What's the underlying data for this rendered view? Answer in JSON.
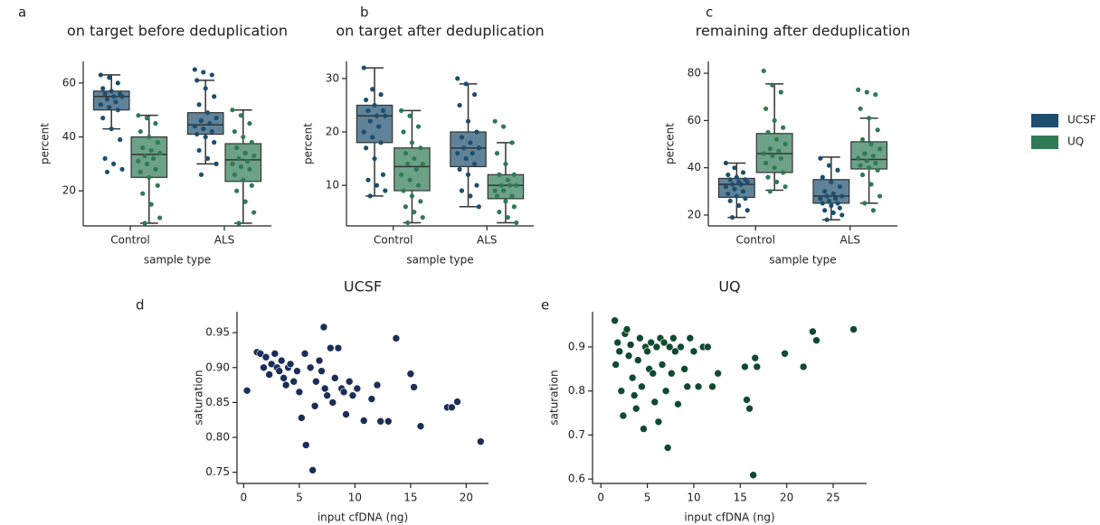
{
  "chart_data": [
    {
      "type": "box",
      "panel_label": "a",
      "title": "on target before deduplication",
      "ylabel": "percent",
      "xlabel": "sample type",
      "categories": [
        "Control",
        "ALS"
      ],
      "ylim": [
        7,
        68
      ],
      "yticks": [
        20,
        40,
        60
      ],
      "series": [
        {
          "name": "UCSF",
          "color": "#1d4e6e",
          "boxes": [
            {
              "whislo": 43,
              "q1": 50,
              "med": 55,
              "q3": 57,
              "whishi": 63
            },
            {
              "whislo": 30,
              "q1": 41,
              "med": 44.5,
              "q3": 49,
              "whishi": 61
            }
          ],
          "points": [
            [
              63,
              62,
              60,
              58,
              57,
              56,
              56,
              55,
              55,
              54,
              53,
              52,
              51,
              50,
              47,
              43,
              39,
              32,
              30,
              28,
              27
            ],
            [
              65,
              64,
              63,
              61,
              58,
              55,
              52,
              49,
              47,
              46,
              45,
              44,
              43,
              42,
              41,
              40,
              38,
              35,
              32,
              30,
              26
            ]
          ]
        },
        {
          "name": "UQ",
          "color": "#2f7a55",
          "boxes": [
            {
              "whislo": 8,
              "q1": 25,
              "med": 33.5,
              "q3": 40,
              "whishi": 48
            },
            {
              "whislo": 8,
              "q1": 23.5,
              "med": 31.5,
              "q3": 37.5,
              "whishi": 50
            }
          ],
          "points": [
            [
              48,
              47,
              45,
              42,
              40,
              38,
              36,
              35,
              34,
              33,
              32,
              31,
              30,
              28,
              27,
              25,
              22,
              19,
              15,
              10,
              8
            ],
            [
              50,
              48,
              45,
              42,
              40,
              38,
              36,
              34,
              33,
              32,
              31,
              30,
              29,
              28,
              26,
              24,
              22,
              20,
              16,
              12,
              8
            ]
          ]
        }
      ]
    },
    {
      "type": "box",
      "panel_label": "b",
      "title": "on target after deduplication",
      "ylabel": "percent",
      "xlabel": "sample type",
      "categories": [
        "Control",
        "ALS"
      ],
      "ylim": [
        2.4,
        33.2
      ],
      "yticks": [
        10,
        20,
        30
      ],
      "series": [
        {
          "name": "UCSF",
          "color": "#1d4e6e",
          "boxes": [
            {
              "whislo": 8,
              "q1": 18,
              "med": 23,
              "q3": 25,
              "whishi": 32
            },
            {
              "whislo": 6,
              "q1": 13.5,
              "med": 17,
              "q3": 20,
              "whishi": 29
            }
          ],
          "points": [
            [
              32,
              28,
              27,
              26,
              25,
              24,
              24,
              23,
              23,
              22,
              21,
              20,
              19,
              18,
              17,
              15,
              12,
              11,
              10,
              9,
              8
            ],
            [
              30,
              29,
              27,
              25,
              22,
              20,
              19,
              18,
              17,
              17,
              16,
              16,
              15,
              14,
              13,
              12,
              10,
              9,
              8,
              6
            ]
          ]
        },
        {
          "name": "UQ",
          "color": "#2f7a55",
          "boxes": [
            {
              "whislo": 3,
              "q1": 9,
              "med": 13.5,
              "q3": 17,
              "whishi": 24
            },
            {
              "whislo": 3,
              "q1": 7.5,
              "med": 10,
              "q3": 12,
              "whishi": 18
            }
          ],
          "points": [
            [
              24,
              23,
              21,
              20,
              18,
              17,
              16,
              15,
              14,
              14,
              13,
              12,
              11,
              10,
              9,
              8,
              7,
              6,
              5,
              4,
              3
            ],
            [
              22,
              21,
              18,
              16,
              14,
              12,
              12,
              11,
              10,
              10,
              10,
              9,
              9,
              8,
              8,
              7,
              6,
              5,
              4,
              3
            ]
          ]
        }
      ]
    },
    {
      "type": "box",
      "panel_label": "c",
      "title": "remaining after deduplication",
      "ylabel": "percent",
      "xlabel": "sample type",
      "categories": [
        "Control",
        "ALS"
      ],
      "ylim": [
        15.4,
        85
      ],
      "yticks": [
        20,
        40,
        60,
        80
      ],
      "legend": "right-outside",
      "series": [
        {
          "name": "UCSF",
          "color": "#1d4e6e",
          "boxes": [
            {
              "whislo": 19,
              "q1": 27.5,
              "med": 33,
              "q3": 35.5,
              "whishi": 42
            },
            {
              "whislo": 18,
              "q1": 25,
              "med": 28,
              "q3": 35,
              "whishi": 44.5
            }
          ],
          "points": [
            [
              42,
              40,
              38,
              37,
              36,
              35,
              35,
              34,
              34,
              33,
              33,
              32,
              31,
              30,
              29,
              28,
              27,
              26,
              24,
              22,
              19
            ],
            [
              44,
              41,
              39,
              36,
              34,
              32,
              30,
              29,
              28,
              28,
              27,
              27,
              26,
              25,
              25,
              24,
              23,
              22,
              21,
              20,
              18
            ]
          ]
        },
        {
          "name": "UQ",
          "color": "#2f7a55",
          "boxes": [
            {
              "whislo": 30.5,
              "q1": 38,
              "med": 46,
              "q3": 54.5,
              "whishi": 75.5
            },
            {
              "whislo": 25,
              "q1": 39.5,
              "med": 43.5,
              "q3": 51,
              "whishi": 61
            }
          ],
          "points": [
            [
              81,
              75,
              72,
              65,
              60,
              57,
              55,
              52,
              50,
              48,
              47,
              46,
              45,
              44,
              42,
              40,
              38,
              36,
              34,
              32,
              30
            ],
            [
              73,
              72,
              71,
              65,
              61,
              56,
              52,
              50,
              48,
              46,
              45,
              44,
              43,
              42,
              41,
              40,
              39,
              37,
              33,
              28,
              25,
              22
            ]
          ]
        }
      ]
    },
    {
      "type": "scatter",
      "panel_label": "d",
      "title": "UCSF",
      "xlabel": "input cfDNA (ng)",
      "ylabel": "saturation",
      "color": "#1b2d58",
      "xlim": [
        -0.6,
        22
      ],
      "xticks": [
        0,
        5,
        10,
        15,
        20
      ],
      "ylim": [
        0.734,
        0.98
      ],
      "yticks": [
        0.75,
        {
          "value": 0.8,
          "label": "0.80"
        },
        0.85,
        {
          "value": 0.9,
          "label": "0.90"
        },
        0.95
      ],
      "x": [
        0.3,
        1.2,
        1.5,
        1.8,
        2,
        2.3,
        2.5,
        2.8,
        3,
        3.2,
        3.4,
        3.6,
        3.8,
        4,
        4.2,
        4.5,
        4.8,
        5,
        5.2,
        5.5,
        5.6,
        6,
        6.2,
        6.4,
        6.5,
        6.8,
        7,
        7.2,
        7.3,
        7.5,
        7.8,
        8,
        8.2,
        8.5,
        8.8,
        9,
        9.2,
        9.5,
        9.8,
        10.2,
        10.8,
        11.5,
        12,
        12.3,
        13,
        13.7,
        15,
        15.3,
        15.9,
        18.3,
        18.7,
        19.2,
        21.3
      ],
      "y": [
        0.867,
        0.922,
        0.92,
        0.9,
        0.915,
        0.89,
        0.905,
        0.92,
        0.9,
        0.895,
        0.91,
        0.885,
        0.875,
        0.9,
        0.905,
        0.88,
        0.895,
        0.865,
        0.828,
        0.92,
        0.789,
        0.9,
        0.753,
        0.845,
        0.88,
        0.91,
        0.895,
        0.958,
        0.87,
        0.86,
        0.928,
        0.85,
        0.885,
        0.928,
        0.87,
        0.865,
        0.833,
        0.88,
        0.86,
        0.87,
        0.824,
        0.855,
        0.875,
        0.823,
        0.823,
        0.942,
        0.891,
        0.872,
        0.816,
        0.843,
        0.843,
        0.851,
        0.794
      ]
    },
    {
      "type": "scatter",
      "panel_label": "e",
      "title": "UQ",
      "xlabel": "input cfDNA (ng)",
      "ylabel": "saturation",
      "color": "#0f4a30",
      "xlim": [
        -0.9,
        28.6
      ],
      "xticks": [
        0,
        5,
        10,
        15,
        20,
        25
      ],
      "ylim": [
        0.59,
        0.98
      ],
      "yticks": [
        0.6,
        0.7,
        0.8,
        0.9
      ],
      "x": [
        1.5,
        1.6,
        1.8,
        2,
        2.2,
        2.4,
        2.6,
        2.8,
        3,
        3.2,
        3.4,
        3.6,
        3.8,
        4,
        4.2,
        4.4,
        4.6,
        4.8,
        5,
        5.2,
        5.4,
        5.6,
        5.8,
        6,
        6.2,
        6.4,
        6.6,
        6.8,
        7,
        7.2,
        7.4,
        7.6,
        7.8,
        8,
        8.3,
        8.6,
        9,
        9.3,
        9.6,
        10,
        10.5,
        11,
        11.5,
        12,
        12.6,
        15.5,
        15.7,
        16,
        16.4,
        16.6,
        16.8,
        19.8,
        21.8,
        22.8,
        23.2,
        27.2
      ],
      "y": [
        0.96,
        0.86,
        0.91,
        0.89,
        0.8,
        0.744,
        0.93,
        0.94,
        0.88,
        0.905,
        0.83,
        0.79,
        0.76,
        0.87,
        0.92,
        0.81,
        0.714,
        0.9,
        0.89,
        0.85,
        0.91,
        0.84,
        0.775,
        0.9,
        0.73,
        0.92,
        0.86,
        0.91,
        0.8,
        0.671,
        0.9,
        0.84,
        0.92,
        0.89,
        0.77,
        0.9,
        0.85,
        0.81,
        0.92,
        0.89,
        0.81,
        0.9,
        0.9,
        0.81,
        0.84,
        0.855,
        0.78,
        0.76,
        0.609,
        0.875,
        0.855,
        0.885,
        0.855,
        0.935,
        0.915,
        0.94
      ]
    }
  ]
}
